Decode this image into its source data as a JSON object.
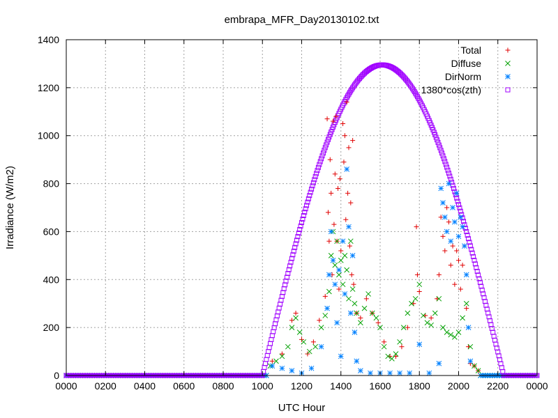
{
  "chart_data": {
    "type": "scatter",
    "title": "embrapa_MFR_Day20130102.txt",
    "xlabel": "UTC Hour",
    "ylabel": "Irradiance (W/m2)",
    "xlim": [
      0,
      24
    ],
    "ylim": [
      0,
      1400
    ],
    "x_ticks": [
      0,
      2,
      4,
      6,
      8,
      10,
      12,
      14,
      16,
      18,
      20,
      22,
      24
    ],
    "x_tick_labels": [
      "0000",
      "0200",
      "0400",
      "0600",
      "0800",
      "1000",
      "1200",
      "1400",
      "1600",
      "1800",
      "2000",
      "2200",
      "0000"
    ],
    "y_ticks": [
      0,
      200,
      400,
      600,
      800,
      1000,
      1200,
      1400
    ],
    "y_tick_labels": [
      "0",
      "200",
      "400",
      "600",
      "800",
      "1000",
      "1200",
      "1400"
    ],
    "grid": true,
    "legend_position": "top-right",
    "series": [
      {
        "name": "Total",
        "marker": "plus",
        "color": "#e00000",
        "points": [
          [
            10.5,
            60
          ],
          [
            11.0,
            90
          ],
          [
            11.5,
            230
          ],
          [
            11.7,
            260
          ],
          [
            12.0,
            150
          ],
          [
            12.3,
            90
          ],
          [
            12.6,
            140
          ],
          [
            12.9,
            230
          ],
          [
            13.2,
            330
          ],
          [
            13.3,
            1070
          ],
          [
            13.35,
            680
          ],
          [
            13.4,
            560
          ],
          [
            13.45,
            900
          ],
          [
            13.5,
            760
          ],
          [
            13.55,
            420
          ],
          [
            13.6,
            1060
          ],
          [
            13.65,
            630
          ],
          [
            13.7,
            840
          ],
          [
            13.75,
            1080
          ],
          [
            13.8,
            560
          ],
          [
            13.85,
            780
          ],
          [
            13.9,
            360
          ],
          [
            13.95,
            820
          ],
          [
            14.0,
            520
          ],
          [
            14.1,
            1050
          ],
          [
            14.15,
            890
          ],
          [
            14.2,
            1000
          ],
          [
            14.25,
            650
          ],
          [
            14.3,
            1140
          ],
          [
            14.35,
            760
          ],
          [
            14.4,
            950
          ],
          [
            14.45,
            540
          ],
          [
            14.5,
            720
          ],
          [
            14.55,
            420
          ],
          [
            14.6,
            980
          ],
          [
            14.65,
            380
          ],
          [
            14.8,
            260
          ],
          [
            15.0,
            240
          ],
          [
            15.3,
            320
          ],
          [
            15.6,
            260
          ],
          [
            15.9,
            220
          ],
          [
            16.2,
            140
          ],
          [
            16.5,
            80
          ],
          [
            16.8,
            80
          ],
          [
            17.1,
            120
          ],
          [
            17.4,
            200
          ],
          [
            17.7,
            300
          ],
          [
            17.85,
            620
          ],
          [
            17.9,
            420
          ],
          [
            18.0,
            350
          ],
          [
            18.3,
            250
          ],
          [
            18.6,
            240
          ],
          [
            18.9,
            320
          ],
          [
            19.0,
            420
          ],
          [
            19.1,
            660
          ],
          [
            19.2,
            580
          ],
          [
            19.3,
            520
          ],
          [
            19.4,
            700
          ],
          [
            19.5,
            640
          ],
          [
            19.6,
            460
          ],
          [
            19.7,
            540
          ],
          [
            19.8,
            380
          ],
          [
            19.9,
            520
          ],
          [
            20.0,
            480
          ],
          [
            20.1,
            360
          ],
          [
            20.2,
            460
          ],
          [
            20.3,
            540
          ],
          [
            20.4,
            280
          ],
          [
            20.5,
            120
          ],
          [
            20.6,
            50
          ],
          [
            20.8,
            40
          ],
          [
            21.0,
            20
          ]
        ]
      },
      {
        "name": "Diffuse",
        "marker": "cross",
        "color": "#00a000",
        "points": [
          [
            10.4,
            40
          ],
          [
            10.7,
            60
          ],
          [
            11.0,
            80
          ],
          [
            11.3,
            120
          ],
          [
            11.5,
            200
          ],
          [
            11.7,
            240
          ],
          [
            11.9,
            180
          ],
          [
            12.1,
            140
          ],
          [
            12.4,
            100
          ],
          [
            12.7,
            120
          ],
          [
            13.0,
            200
          ],
          [
            13.2,
            250
          ],
          [
            13.4,
            350
          ],
          [
            13.5,
            500
          ],
          [
            13.6,
            600
          ],
          [
            13.7,
            460
          ],
          [
            13.8,
            560
          ],
          [
            13.9,
            420
          ],
          [
            14.0,
            480
          ],
          [
            14.1,
            380
          ],
          [
            14.2,
            500
          ],
          [
            14.3,
            440
          ],
          [
            14.4,
            320
          ],
          [
            14.5,
            560
          ],
          [
            14.6,
            360
          ],
          [
            14.7,
            300
          ],
          [
            14.8,
            260
          ],
          [
            15.0,
            220
          ],
          [
            15.2,
            280
          ],
          [
            15.4,
            340
          ],
          [
            15.6,
            260
          ],
          [
            15.8,
            240
          ],
          [
            16.0,
            200
          ],
          [
            16.2,
            120
          ],
          [
            16.4,
            80
          ],
          [
            16.6,
            70
          ],
          [
            16.8,
            90
          ],
          [
            17.0,
            140
          ],
          [
            17.2,
            200
          ],
          [
            17.4,
            260
          ],
          [
            17.6,
            300
          ],
          [
            17.8,
            320
          ],
          [
            18.0,
            380
          ],
          [
            18.2,
            250
          ],
          [
            18.4,
            220
          ],
          [
            18.6,
            210
          ],
          [
            18.8,
            260
          ],
          [
            19.0,
            320
          ],
          [
            19.2,
            200
          ],
          [
            19.4,
            180
          ],
          [
            19.6,
            170
          ],
          [
            19.8,
            160
          ],
          [
            20.0,
            180
          ],
          [
            20.2,
            240
          ],
          [
            20.4,
            300
          ],
          [
            20.6,
            120
          ],
          [
            20.8,
            40
          ],
          [
            21.0,
            20
          ]
        ]
      },
      {
        "name": "DirNorm",
        "marker": "star",
        "color": "#0080ff",
        "points": [
          [
            10.5,
            40
          ],
          [
            11.0,
            30
          ],
          [
            11.5,
            20
          ],
          [
            12.0,
            10
          ],
          [
            12.5,
            30
          ],
          [
            13.0,
            120
          ],
          [
            13.3,
            280
          ],
          [
            13.4,
            420
          ],
          [
            13.5,
            600
          ],
          [
            13.6,
            480
          ],
          [
            13.7,
            380
          ],
          [
            13.8,
            220
          ],
          [
            13.9,
            440
          ],
          [
            14.0,
            80
          ],
          [
            14.1,
            560
          ],
          [
            14.2,
            340
          ],
          [
            14.3,
            860
          ],
          [
            14.4,
            620
          ],
          [
            14.5,
            260
          ],
          [
            14.6,
            500
          ],
          [
            14.7,
            180
          ],
          [
            14.8,
            60
          ],
          [
            15.0,
            20
          ],
          [
            15.5,
            10
          ],
          [
            16.0,
            10
          ],
          [
            16.5,
            10
          ],
          [
            17.0,
            10
          ],
          [
            17.5,
            10
          ],
          [
            18.0,
            130
          ],
          [
            18.5,
            10
          ],
          [
            19.0,
            50
          ],
          [
            19.1,
            780
          ],
          [
            19.2,
            720
          ],
          [
            19.3,
            660
          ],
          [
            19.4,
            600
          ],
          [
            19.5,
            800
          ],
          [
            19.6,
            560
          ],
          [
            19.7,
            700
          ],
          [
            19.8,
            640
          ],
          [
            19.9,
            760
          ],
          [
            20.0,
            580
          ],
          [
            20.1,
            660
          ],
          [
            20.2,
            620
          ],
          [
            20.3,
            540
          ],
          [
            20.4,
            420
          ],
          [
            20.5,
            200
          ],
          [
            20.6,
            60
          ]
        ]
      },
      {
        "name": "1380*cos(zth)",
        "marker": "square",
        "color": "#a000ff",
        "curve": {
          "peak": 1295,
          "peak_x": 16.1,
          "rise": 10.0,
          "set": 22.3
        }
      }
    ]
  }
}
